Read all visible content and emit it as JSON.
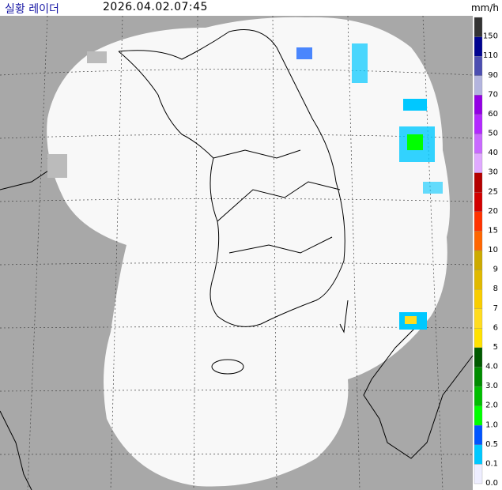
{
  "header": {
    "title": "실황 레이더",
    "timestamp": "2026.04.02.07:45"
  },
  "legend": {
    "unit": "mm/h",
    "items": [
      {
        "label": "150",
        "color": "#333333"
      },
      {
        "label": "110",
        "color": "#000390"
      },
      {
        "label": "90",
        "color": "#4c4eb1"
      },
      {
        "label": "70",
        "color": "#b3b4de"
      },
      {
        "label": "60",
        "color": "#9300e4"
      },
      {
        "label": "50",
        "color": "#b329ff"
      },
      {
        "label": "40",
        "color": "#c969ff"
      },
      {
        "label": "30",
        "color": "#e0a9ff"
      },
      {
        "label": "25",
        "color": "#b40000"
      },
      {
        "label": "20",
        "color": "#d20000"
      },
      {
        "label": "15",
        "color": "#ff3200"
      },
      {
        "label": "10",
        "color": "#ff6600"
      },
      {
        "label": "9",
        "color": "#ccaa00"
      },
      {
        "label": "8",
        "color": "#e0b900"
      },
      {
        "label": "7",
        "color": "#f9cd00"
      },
      {
        "label": "6",
        "color": "#ffdc1f"
      },
      {
        "label": "5",
        "color": "#ffe100"
      },
      {
        "label": "4.0",
        "color": "#005a00"
      },
      {
        "label": "3.0",
        "color": "#008c00"
      },
      {
        "label": "2.0",
        "color": "#00be00"
      },
      {
        "label": "1.0",
        "color": "#00ff00"
      },
      {
        "label": "0.5",
        "color": "#0055ff"
      },
      {
        "label": "0.1",
        "color": "#00c8ff"
      },
      {
        "label": "0.0",
        "color": "#eeeeff"
      }
    ]
  }
}
